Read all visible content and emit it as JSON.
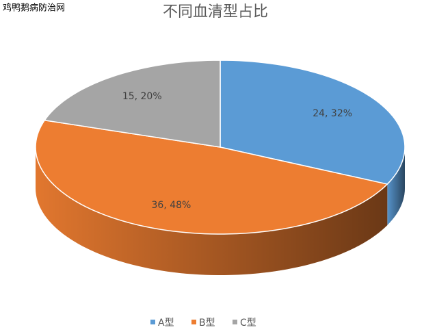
{
  "watermark": "鸡鸭鹅病防治网",
  "chart_data": {
    "type": "pie3d",
    "title": "不同血清型占比",
    "categories": [
      "A型",
      "B型",
      "C型"
    ],
    "values": [
      24,
      36,
      15
    ],
    "value_labels": [
      "24, 32%",
      "36, 48%",
      "15, 20%"
    ],
    "colors": [
      "#5b9bd5",
      "#ed7d31",
      "#a5a5a5"
    ],
    "legend": "bottom"
  }
}
